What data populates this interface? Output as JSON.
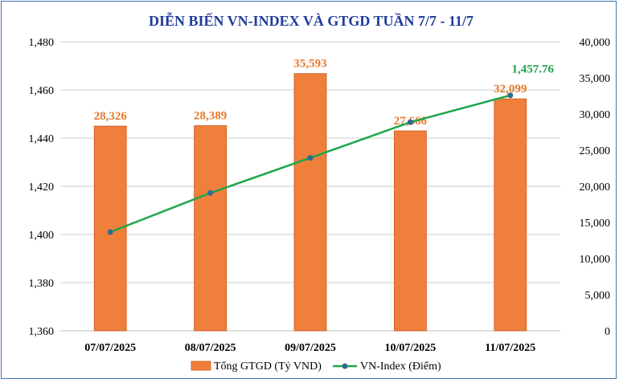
{
  "chart_data": {
    "type": "bar+line",
    "title": "DIỄN BIẾN VN-INDEX VÀ GTGD TUẦN 7/7 - 11/7",
    "categories": [
      "07/07/2025",
      "08/07/2025",
      "09/07/2025",
      "10/07/2025",
      "11/07/2025"
    ],
    "bar_series": {
      "name": "Tổng GTGD (Tỷ VND)",
      "axis": "right",
      "values": [
        28326,
        28389,
        35593,
        27666,
        32099
      ],
      "labels": [
        "28,326",
        "28,389",
        "35,593",
        "27,666",
        "32,099"
      ],
      "color": "#f07f3c"
    },
    "line_series": {
      "name": "VN-Index (Điểm)",
      "axis": "left",
      "values": [
        1401.0,
        1417.2,
        1431.8,
        1446.6,
        1457.76
      ],
      "last_label": "1,457.76",
      "line_color": "#1ea64a",
      "marker_color": "#2f6c8f"
    },
    "y_left": {
      "min": 1360,
      "max": 1480,
      "step": 20,
      "tick_labels": [
        "1,360",
        "1,380",
        "1,400",
        "1,420",
        "1,440",
        "1,460",
        "1,480"
      ]
    },
    "y_right": {
      "min": 0,
      "max": 40000,
      "step": 5000,
      "tick_labels": [
        "0",
        "5,000",
        "10,000",
        "15,000",
        "20,000",
        "25,000",
        "30,000",
        "35,000",
        "40,000"
      ]
    },
    "grid": true,
    "legend_position": "bottom"
  }
}
